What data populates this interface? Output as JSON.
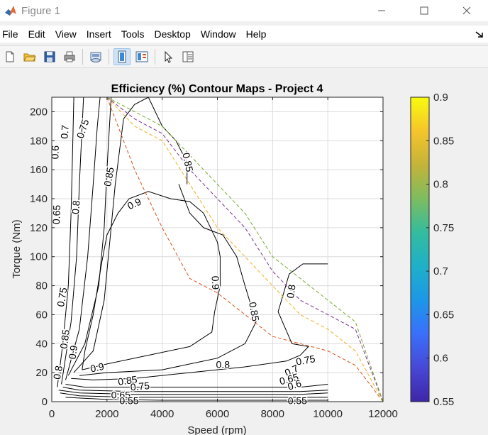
{
  "window": {
    "title": "Figure 1",
    "minimize_icon": "minimize-icon",
    "maximize_icon": "maximize-icon",
    "close_icon": "close-icon"
  },
  "menu": {
    "items": [
      "File",
      "Edit",
      "View",
      "Insert",
      "Tools",
      "Desktop",
      "Window",
      "Help"
    ]
  },
  "toolbar": {
    "buttons": [
      {
        "icon": "new-figure-icon",
        "active": false
      },
      {
        "icon": "open-file-icon",
        "active": false
      },
      {
        "icon": "save-icon",
        "active": false
      },
      {
        "icon": "print-icon",
        "active": false
      },
      {
        "icon": "link-plot-icon",
        "active": false
      },
      {
        "icon": "hide-plot-tools-icon",
        "active": true
      },
      {
        "icon": "show-plot-tools-icon",
        "active": false
      },
      {
        "icon": "edit-plot-arrow-icon",
        "active": false
      },
      {
        "icon": "property-inspector-icon",
        "active": false
      }
    ]
  },
  "chart_data": {
    "type": "contour",
    "title": "Efficiency (%) Contour Maps - Project 4",
    "xlabel": "Speed (rpm)",
    "ylabel": "Torque (Nm)",
    "xlim": [
      0,
      12000
    ],
    "ylim": [
      0,
      210
    ],
    "xticks": [
      0,
      2000,
      4000,
      6000,
      8000,
      10000,
      12000
    ],
    "xtick_labels": [
      "0",
      "2000",
      "4000",
      "6000",
      "8000",
      "10000",
      "12000"
    ],
    "yticks": [
      0,
      20,
      40,
      60,
      80,
      100,
      120,
      140,
      160,
      180,
      200
    ],
    "ytick_labels": [
      "0",
      "20",
      "40",
      "60",
      "80",
      "100",
      "120",
      "140",
      "160",
      "180",
      "200"
    ],
    "grid": true,
    "colorbar": {
      "limits": [
        0.55,
        0.9
      ],
      "ticks": [
        0.55,
        0.6,
        0.65,
        0.7,
        0.75,
        0.8,
        0.85,
        0.9
      ],
      "tick_labels": [
        "0.55",
        "0.6",
        "0.65",
        "0.7",
        "0.75",
        "0.8",
        "0.85",
        "0.9"
      ],
      "colormap": "parula",
      "stops": [
        "#3e26a8",
        "#4748d6",
        "#3a6ffb",
        "#1c97e8",
        "#1fb0c9",
        "#33bc9e",
        "#7ebc60",
        "#c4b339",
        "#f5c52b",
        "#f9fb0e"
      ]
    },
    "contours": [
      {
        "level": 0.55,
        "points": [
          [
            500,
            3
          ],
          [
            2000,
            1.5
          ],
          [
            4000,
            1
          ],
          [
            6000,
            1
          ],
          [
            8000,
            1
          ],
          [
            10000,
            1
          ]
        ]
      },
      {
        "level": 0.6,
        "points": [
          [
            300,
            6
          ],
          [
            1000,
            4
          ],
          [
            3000,
            3
          ],
          [
            5000,
            3
          ],
          [
            7000,
            3
          ],
          [
            9000,
            3
          ],
          [
            10000,
            3
          ]
        ]
      },
      {
        "level": 0.65,
        "points": [
          [
            200,
            10
          ],
          [
            400,
            40
          ],
          [
            600,
            80
          ],
          [
            700,
            130
          ],
          [
            750,
            170
          ],
          [
            800,
            210
          ]
        ]
      },
      {
        "level": 0.65,
        "points": [
          [
            250,
            8
          ],
          [
            1000,
            6
          ],
          [
            3000,
            5
          ],
          [
            5000,
            5
          ],
          [
            7000,
            5
          ],
          [
            9000,
            5
          ],
          [
            10000,
            6
          ]
        ]
      },
      {
        "level": 0.7,
        "points": [
          [
            350,
            12
          ],
          [
            700,
            55
          ],
          [
            900,
            100
          ],
          [
            1000,
            150
          ],
          [
            1100,
            190
          ],
          [
            1150,
            210
          ]
        ]
      },
      {
        "level": 0.7,
        "points": [
          [
            400,
            10
          ],
          [
            1000,
            8
          ],
          [
            3000,
            7
          ],
          [
            5000,
            7
          ],
          [
            7000,
            7
          ],
          [
            9000,
            7
          ],
          [
            10000,
            8
          ]
        ]
      },
      {
        "level": 0.75,
        "points": [
          [
            500,
            15
          ],
          [
            1000,
            50
          ],
          [
            1300,
            100
          ],
          [
            1500,
            150
          ],
          [
            1650,
            190
          ],
          [
            1750,
            210
          ]
        ]
      },
      {
        "level": 0.75,
        "points": [
          [
            500,
            12
          ],
          [
            1200,
            10
          ],
          [
            3000,
            10
          ],
          [
            5000,
            10
          ],
          [
            7000,
            10
          ],
          [
            9000,
            10
          ],
          [
            10000,
            12
          ]
        ]
      },
      {
        "level": 0.8,
        "points": [
          [
            600,
            18
          ],
          [
            1200,
            40
          ],
          [
            1700,
            80
          ],
          [
            1900,
            120
          ],
          [
            2000,
            160
          ],
          [
            2150,
            210
          ]
        ]
      },
      {
        "level": 0.8,
        "points": [
          [
            700,
            16
          ],
          [
            1500,
            15
          ],
          [
            3000,
            16
          ],
          [
            5000,
            20
          ],
          [
            7000,
            24
          ],
          [
            8500,
            28
          ],
          [
            9000,
            32
          ],
          [
            9300,
            38
          ],
          [
            8700,
            40
          ],
          [
            8200,
            62
          ],
          [
            8600,
            88
          ],
          [
            9100,
            95
          ],
          [
            10000,
            95
          ]
        ]
      },
      {
        "level": 0.85,
        "points": [
          [
            800,
            20
          ],
          [
            1500,
            35
          ],
          [
            1900,
            70
          ],
          [
            2100,
            110
          ],
          [
            2300,
            150
          ],
          [
            2600,
            195
          ],
          [
            3000,
            205
          ],
          [
            3500,
            210
          ],
          [
            4000,
            190
          ],
          [
            4500,
            180
          ],
          [
            4900,
            165
          ],
          [
            4900,
            150
          ]
        ]
      },
      {
        "level": 0.85,
        "points": [
          [
            1000,
            18
          ],
          [
            2000,
            20
          ],
          [
            4000,
            22
          ],
          [
            6000,
            30
          ],
          [
            7000,
            40
          ],
          [
            7400,
            55
          ],
          [
            7000,
            80
          ],
          [
            6700,
            100
          ],
          [
            6200,
            115
          ],
          [
            5500,
            120
          ],
          [
            5000,
            130
          ],
          [
            4600,
            150
          ]
        ]
      },
      {
        "level": 0.9,
        "points": [
          [
            1100,
            22
          ],
          [
            2000,
            26
          ],
          [
            3500,
            32
          ],
          [
            5000,
            38
          ],
          [
            5800,
            48
          ],
          [
            5900,
            62
          ],
          [
            6100,
            80
          ],
          [
            6100,
            100
          ],
          [
            6000,
            110
          ],
          [
            5500,
            130
          ],
          [
            5000,
            138
          ],
          [
            4300,
            140
          ],
          [
            3500,
            145
          ],
          [
            2800,
            140
          ],
          [
            2400,
            130
          ],
          [
            2000,
            115
          ],
          [
            1800,
            95
          ],
          [
            1500,
            60
          ],
          [
            1200,
            35
          ],
          [
            1100,
            22
          ]
        ]
      }
    ],
    "labels": [
      {
        "text": "0.75",
        "x": 1150,
        "y": 188,
        "rotation": -72
      },
      {
        "text": "0.7",
        "x": 500,
        "y": 186,
        "rotation": -85
      },
      {
        "text": "0.6",
        "x": 150,
        "y": 172,
        "rotation": -88
      },
      {
        "text": "0.65",
        "x": 200,
        "y": 129,
        "rotation": -88
      },
      {
        "text": "0.8",
        "x": 900,
        "y": 134,
        "rotation": -85
      },
      {
        "text": "0.85",
        "x": 2100,
        "y": 155,
        "rotation": -80
      },
      {
        "text": "0.9",
        "x": 3000,
        "y": 136,
        "rotation": -25
      },
      {
        "text": "0.85",
        "x": 4900,
        "y": 165,
        "rotation": 78
      },
      {
        "text": "0.9",
        "x": 5900,
        "y": 82,
        "rotation": 88
      },
      {
        "text": "0.85",
        "x": 7300,
        "y": 62,
        "rotation": 80
      },
      {
        "text": "0.8",
        "x": 8700,
        "y": 76,
        "rotation": -82
      },
      {
        "text": "0.75",
        "x": 400,
        "y": 72,
        "rotation": -80
      },
      {
        "text": "0.85",
        "x": 500,
        "y": 43,
        "rotation": -82
      },
      {
        "text": "0.9",
        "x": 800,
        "y": 34,
        "rotation": -82
      },
      {
        "text": "0.8",
        "x": 250,
        "y": 20,
        "rotation": -80
      },
      {
        "text": "0.9",
        "x": 1650,
        "y": 23,
        "rotation": -12
      },
      {
        "text": "0.85",
        "x": 2750,
        "y": 14,
        "rotation": -8
      },
      {
        "text": "0.75",
        "x": 3200,
        "y": 10,
        "rotation": -5
      },
      {
        "text": "0.65",
        "x": 2500,
        "y": 4,
        "rotation": 0
      },
      {
        "text": "0.55",
        "x": 2800,
        "y": 0,
        "rotation": 0
      },
      {
        "text": "0.8",
        "x": 6200,
        "y": 25,
        "rotation": 0
      },
      {
        "text": "0.75",
        "x": 9200,
        "y": 28,
        "rotation": -10
      },
      {
        "text": "0.7",
        "x": 8700,
        "y": 21,
        "rotation": -25
      },
      {
        "text": "0.65",
        "x": 8600,
        "y": 15,
        "rotation": -15
      },
      {
        "text": "0.6",
        "x": 8800,
        "y": 11,
        "rotation": -18
      },
      {
        "text": "0.55",
        "x": 8900,
        "y": 0,
        "rotation": 0
      }
    ],
    "limit_curves": [
      {
        "color": "#d95319",
        "points": [
          [
            2000,
            210
          ],
          [
            3000,
            160
          ],
          [
            4000,
            120
          ],
          [
            5000,
            85
          ],
          [
            6000,
            75
          ],
          [
            7000,
            60
          ],
          [
            8000,
            45
          ],
          [
            9000,
            40
          ],
          [
            10000,
            35
          ],
          [
            11000,
            25
          ],
          [
            12000,
            0
          ]
        ]
      },
      {
        "color": "#edb120",
        "points": [
          [
            2000,
            210
          ],
          [
            3000,
            190
          ],
          [
            4000,
            180
          ],
          [
            5000,
            150
          ],
          [
            6000,
            120
          ],
          [
            7000,
            100
          ],
          [
            8000,
            80
          ],
          [
            9000,
            60
          ],
          [
            10000,
            50
          ],
          [
            11000,
            35
          ],
          [
            12000,
            0
          ]
        ]
      },
      {
        "color": "#7e2f8e",
        "points": [
          [
            2000,
            210
          ],
          [
            3000,
            195
          ],
          [
            4000,
            185
          ],
          [
            5000,
            160
          ],
          [
            6000,
            140
          ],
          [
            7000,
            120
          ],
          [
            8000,
            90
          ],
          [
            9000,
            70
          ],
          [
            10000,
            60
          ],
          [
            11000,
            50
          ],
          [
            12000,
            0
          ]
        ]
      },
      {
        "color": "#77ac30",
        "points": [
          [
            2000,
            210
          ],
          [
            3000,
            200
          ],
          [
            4000,
            190
          ],
          [
            5000,
            170
          ],
          [
            6000,
            150
          ],
          [
            7000,
            130
          ],
          [
            8000,
            100
          ],
          [
            9000,
            85
          ],
          [
            10000,
            70
          ],
          [
            11000,
            55
          ],
          [
            12000,
            0
          ]
        ]
      }
    ],
    "legend": "none"
  }
}
